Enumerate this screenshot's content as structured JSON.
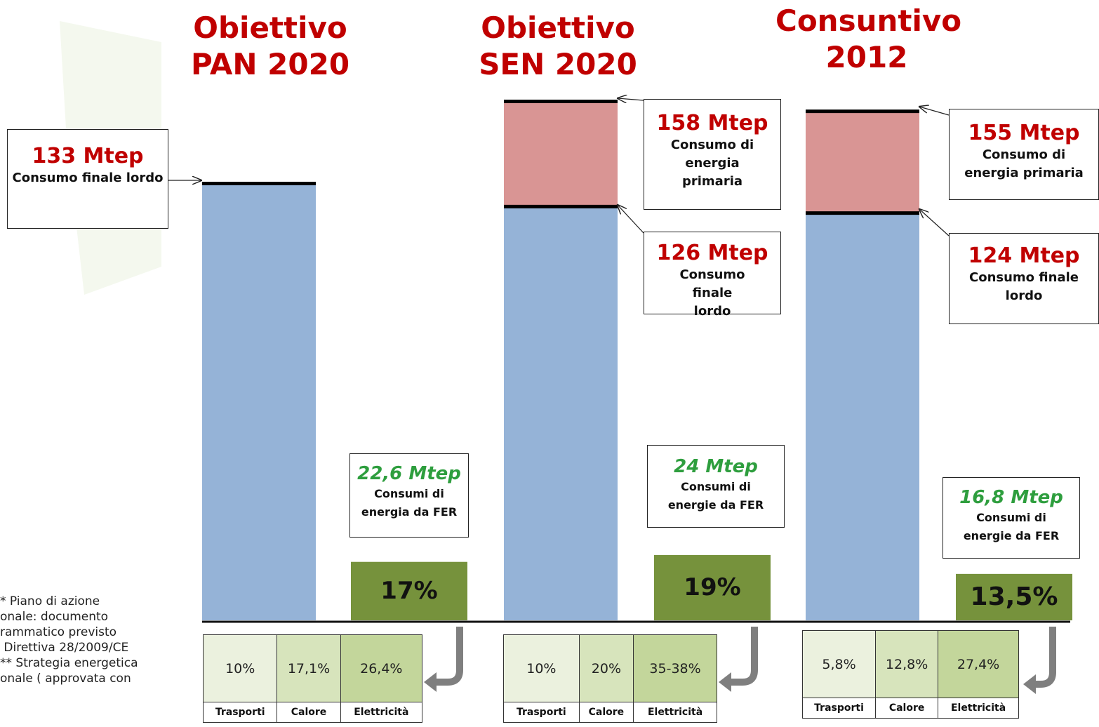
{
  "chart_data": {
    "type": "bar",
    "unit": "Mtep",
    "groups": [
      {
        "title_line1": "Obiettivo",
        "title_line2": "PAN 2020",
        "total_consumption": 133,
        "total_value_label": "133 Mtep",
        "total_label": "Consumo finale lordo",
        "fer_value": 22.6,
        "fer_value_label": "22,6 Mtep",
        "fer_label": "Consumi di energia da FER",
        "fer_share": 17,
        "fer_share_label": "17%",
        "breakdown": {
          "headers": [
            "Trasporti",
            "Calore",
            "Elettricità"
          ],
          "values": [
            "10%",
            "17,1%",
            "26,4%"
          ]
        }
      },
      {
        "title_line1": "Obiettivo",
        "title_line2": "SEN 2020",
        "primary_consumption": 158,
        "primary_value_label": "158 Mtep",
        "primary_label": "Consumo di energia primaria",
        "total_consumption": 126,
        "total_value_label": "126 Mtep",
        "total_label": "Consumo finale lordo",
        "fer_value": 24,
        "fer_value_label": "24 Mtep",
        "fer_label": "Consumi di energie da FER",
        "fer_share": 19,
        "fer_share_label": "19%",
        "breakdown": {
          "headers": [
            "Trasporti",
            "Calore",
            "Elettricità"
          ],
          "values": [
            "10%",
            "20%",
            "35-38%"
          ]
        }
      },
      {
        "title_line1": "Consuntivo",
        "title_line2": "2012",
        "primary_consumption": 155,
        "primary_value_label": "155 Mtep",
        "primary_label": "Consumo di energia primaria",
        "total_consumption": 124,
        "total_value_label": "124 Mtep",
        "total_label": "Consumo finale lordo",
        "fer_value": 16.8,
        "fer_value_label": "16,8 Mtep",
        "fer_label": "Consumi di energie da FER",
        "fer_share": 13.5,
        "fer_share_label": "13,5%",
        "breakdown": {
          "headers": [
            "Trasporti",
            "Calore",
            "Elettricità"
          ],
          "values": [
            "5,8%",
            "12,8%",
            "27,4%"
          ]
        }
      }
    ],
    "colors": {
      "final": "#95b3d7",
      "primary": "#d99594",
      "fer": "#76923c",
      "title": "#c00000",
      "fer_text": "#2e9e3e"
    }
  },
  "footnote": "* Piano di azione\nonale: documento\nrammatico previsto\n Direttiva 28/2009/CE\n** Strategia energetica\nonale ( approvata con"
}
